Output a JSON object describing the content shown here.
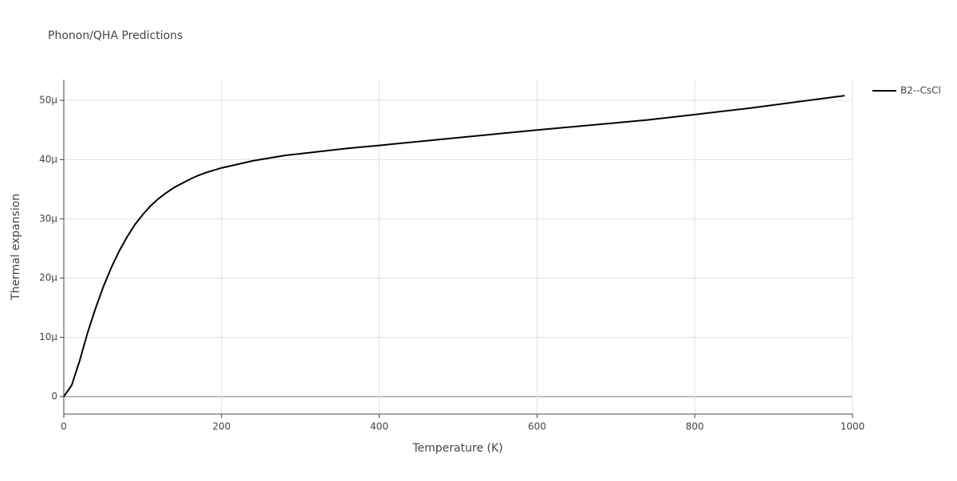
{
  "chart_data": {
    "type": "line",
    "title": "Phonon/QHA Predictions",
    "x_label": "Temperature (K)",
    "y_label": "Thermal expansion",
    "x": [
      0,
      10,
      20,
      30,
      40,
      50,
      60,
      70,
      80,
      90,
      100,
      110,
      120,
      130,
      140,
      150,
      160,
      170,
      180,
      190,
      200,
      240,
      280,
      320,
      360,
      400,
      500,
      600,
      700,
      740,
      800,
      870,
      990
    ],
    "series": [
      {
        "name": "B2--CsCl",
        "color": "#000000",
        "values": [
          0,
          1.9e-06,
          6e-06,
          1.07e-05,
          1.48e-05,
          1.85e-05,
          2.17e-05,
          2.45e-05,
          2.69e-05,
          2.9e-05,
          3.07e-05,
          3.22e-05,
          3.34e-05,
          3.44e-05,
          3.53e-05,
          3.6e-05,
          3.67e-05,
          3.73e-05,
          3.78e-05,
          3.82e-05,
          3.86e-05,
          3.98e-05,
          4.07e-05,
          4.13e-05,
          4.19e-05,
          4.24e-05,
          4.37e-05,
          4.5e-05,
          4.62e-05,
          4.67e-05,
          4.76e-05,
          4.87e-05,
          5.08e-05
        ]
      }
    ],
    "xlim": [
      0,
      1000
    ],
    "xticks": [
      0,
      200,
      400,
      600,
      800,
      1000
    ],
    "ylim": [
      -2.96e-06,
      5.35e-05
    ],
    "yticks": [
      0,
      {
        "value": 1e-05,
        "label": "10μ"
      },
      {
        "value": 2e-05,
        "label": "20μ"
      },
      {
        "value": 3e-05,
        "label": "30μ"
      },
      {
        "value": 4e-05,
        "label": "40μ"
      },
      {
        "value": 5e-05,
        "label": "50μ"
      }
    ],
    "grid": true,
    "legend": "right"
  }
}
